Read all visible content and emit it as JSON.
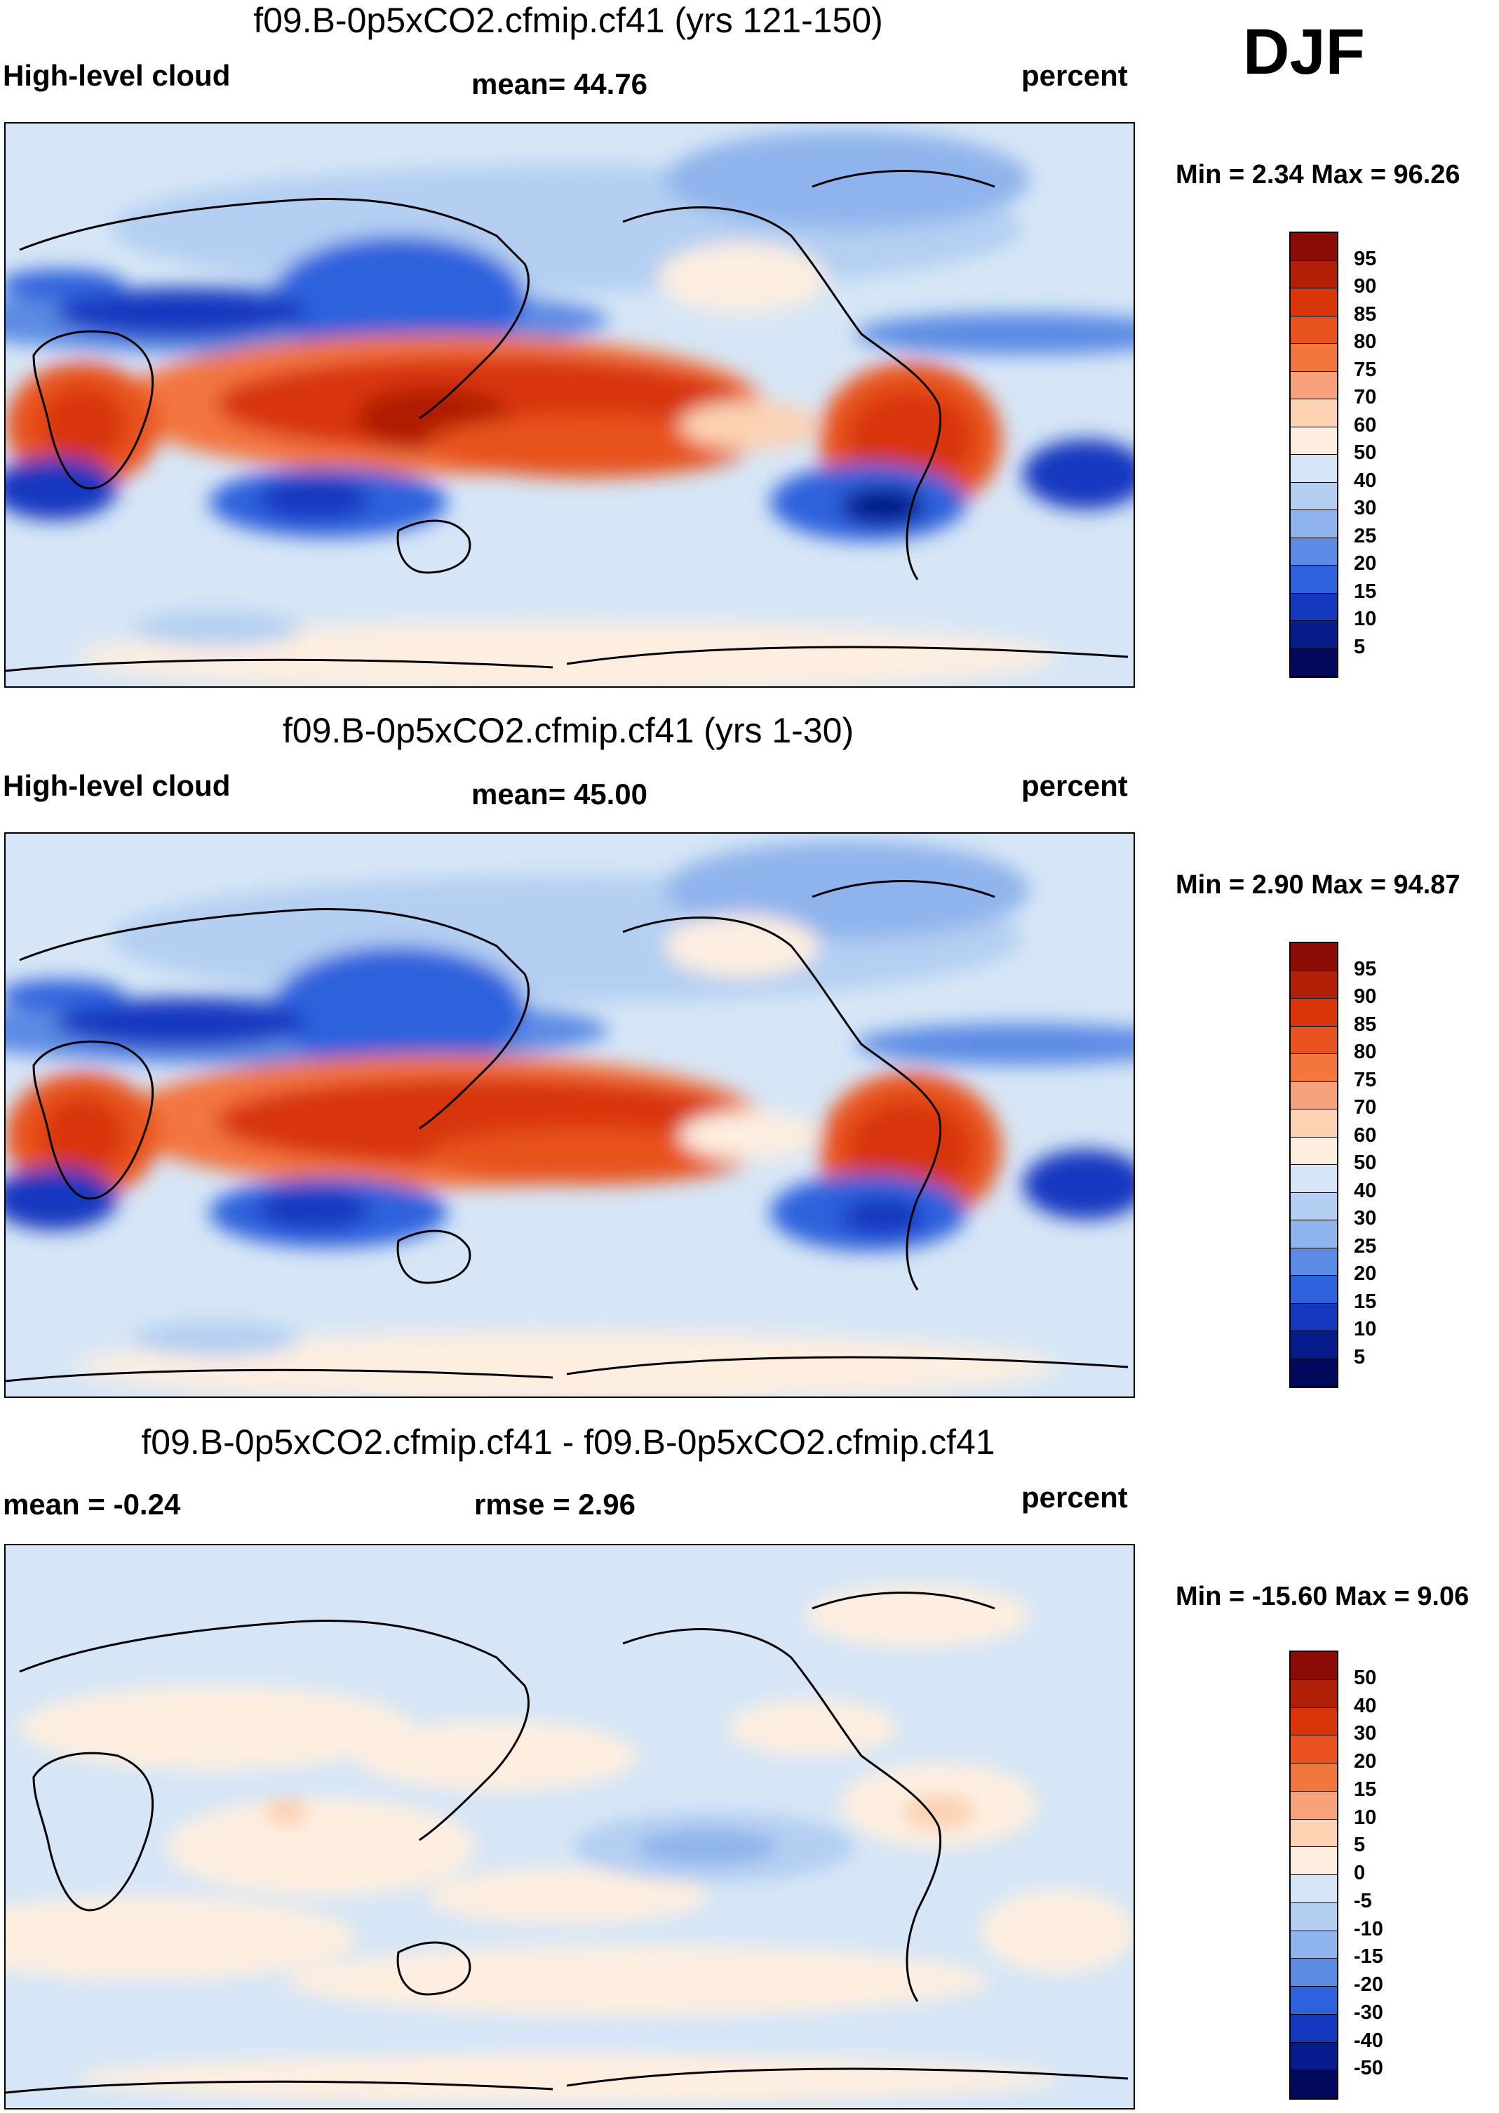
{
  "season": "DJF",
  "panels": [
    {
      "title": "f09.B-0p5xCO2.cfmip.cf41 (yrs 121-150)",
      "left_label": "High-level cloud",
      "center_label": "mean=  44.76",
      "right_label": "percent",
      "minmax": "Min =   2.34 Max =  96.26",
      "colorbar": {
        "labels": [
          "95",
          "90",
          "85",
          "80",
          "75",
          "70",
          "60",
          "50",
          "40",
          "30",
          "25",
          "20",
          "15",
          "10",
          "5"
        ],
        "colors": [
          "#8b0b06",
          "#b01f06",
          "#d83609",
          "#e8531f",
          "#f3763f",
          "#f8a27b",
          "#fcd2b2",
          "#fdeee0",
          "#d6e6f6",
          "#b4cff2",
          "#8fb3ec",
          "#5b8be4",
          "#2e62dd",
          "#1437c0",
          "#061b8c",
          "#00095c"
        ]
      }
    },
    {
      "title": "f09.B-0p5xCO2.cfmip.cf41 (yrs 1-30)",
      "left_label": "High-level cloud",
      "center_label": "mean=  45.00",
      "right_label": "percent",
      "minmax": "Min =   2.90 Max =  94.87",
      "colorbar": {
        "labels": [
          "95",
          "90",
          "85",
          "80",
          "75",
          "70",
          "60",
          "50",
          "40",
          "30",
          "25",
          "20",
          "15",
          "10",
          "5"
        ],
        "colors": [
          "#8b0b06",
          "#b01f06",
          "#d83609",
          "#e8531f",
          "#f3763f",
          "#f8a27b",
          "#fcd2b2",
          "#fdeee0",
          "#d6e6f6",
          "#b4cff2",
          "#8fb3ec",
          "#5b8be4",
          "#2e62dd",
          "#1437c0",
          "#061b8c",
          "#00095c"
        ]
      }
    },
    {
      "title": "f09.B-0p5xCO2.cfmip.cf41 - f09.B-0p5xCO2.cfmip.cf41",
      "left_label": "mean =  -0.24",
      "center_label": "rmse =   2.96",
      "right_label": "percent",
      "minmax": "Min = -15.60 Max =   9.06",
      "colorbar": {
        "labels": [
          "50",
          "40",
          "30",
          "20",
          "15",
          "10",
          "5",
          "0",
          "-5",
          "-10",
          "-15",
          "-20",
          "-30",
          "-40",
          "-50"
        ],
        "colors": [
          "#8b0b06",
          "#b01f06",
          "#d83609",
          "#e8531f",
          "#f3763f",
          "#f8a27b",
          "#fcd2b2",
          "#fdeee0",
          "#d6e6f6",
          "#b4cff2",
          "#8fb3ec",
          "#5b8be4",
          "#2e62dd",
          "#1437c0",
          "#061b8c",
          "#00095c"
        ]
      }
    }
  ],
  "chart_data": [
    {
      "type": "heatmap",
      "title": "f09.B-0p5xCO2.cfmip.cf41 (yrs 121-150)",
      "variable": "High-level cloud",
      "units": "percent",
      "season": "DJF",
      "mean": 44.76,
      "min": 2.34,
      "max": 96.26,
      "levels": [
        5,
        10,
        15,
        20,
        25,
        30,
        40,
        50,
        60,
        70,
        75,
        80,
        85,
        90,
        95
      ]
    },
    {
      "type": "heatmap",
      "title": "f09.B-0p5xCO2.cfmip.cf41 (yrs 1-30)",
      "variable": "High-level cloud",
      "units": "percent",
      "season": "DJF",
      "mean": 45.0,
      "min": 2.9,
      "max": 94.87,
      "levels": [
        5,
        10,
        15,
        20,
        25,
        30,
        40,
        50,
        60,
        70,
        75,
        80,
        85,
        90,
        95
      ]
    },
    {
      "type": "heatmap",
      "title": "f09.B-0p5xCO2.cfmip.cf41 - f09.B-0p5xCO2.cfmip.cf41",
      "units": "percent",
      "season": "DJF",
      "mean": -0.24,
      "rmse": 2.96,
      "min": -15.6,
      "max": 9.06,
      "levels": [
        -50,
        -40,
        -30,
        -20,
        -15,
        -10,
        -5,
        0,
        5,
        10,
        15,
        20,
        30,
        40,
        50
      ]
    }
  ]
}
